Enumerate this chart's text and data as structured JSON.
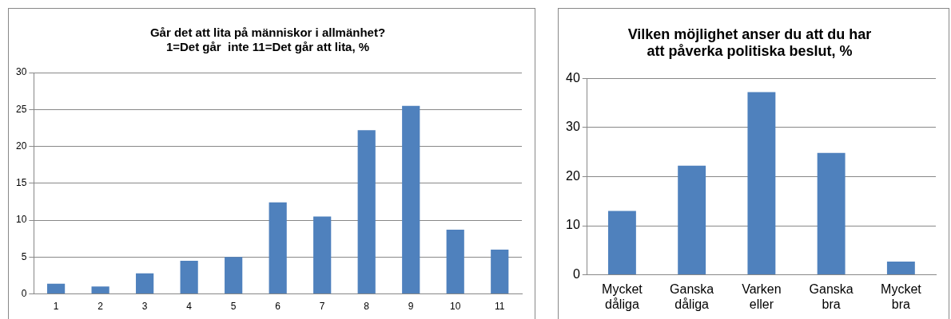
{
  "chart_data": [
    {
      "type": "bar",
      "title": "Går det att lita på människor i allmänhet?\n1=Det går  inte 11=Det går att lita, %",
      "categories": [
        "1",
        "2",
        "3",
        "4",
        "5",
        "6",
        "7",
        "8",
        "9",
        "10",
        "11"
      ],
      "values": [
        1.4,
        1.0,
        2.8,
        4.5,
        5.0,
        12.4,
        10.5,
        22.2,
        25.5,
        8.7,
        6.0
      ],
      "color": "#4f81bd",
      "ylim": [
        0,
        30
      ],
      "yticks": [
        0,
        5,
        10,
        15,
        20,
        25,
        30
      ],
      "grid": "y"
    },
    {
      "type": "bar",
      "title": "Vilken möjlighet anser du att du har\natt påverka politiska beslut, %",
      "categories": [
        "Mycket dåliga",
        "Ganska dåliga",
        "Varken eller",
        "Ganska bra",
        "Mycket bra"
      ],
      "values": [
        13.0,
        22.2,
        37.2,
        24.8,
        2.7
      ],
      "color": "#4f81bd",
      "ylim": [
        0,
        40
      ],
      "yticks": [
        0,
        10,
        20,
        30,
        40
      ],
      "grid": "y"
    }
  ]
}
